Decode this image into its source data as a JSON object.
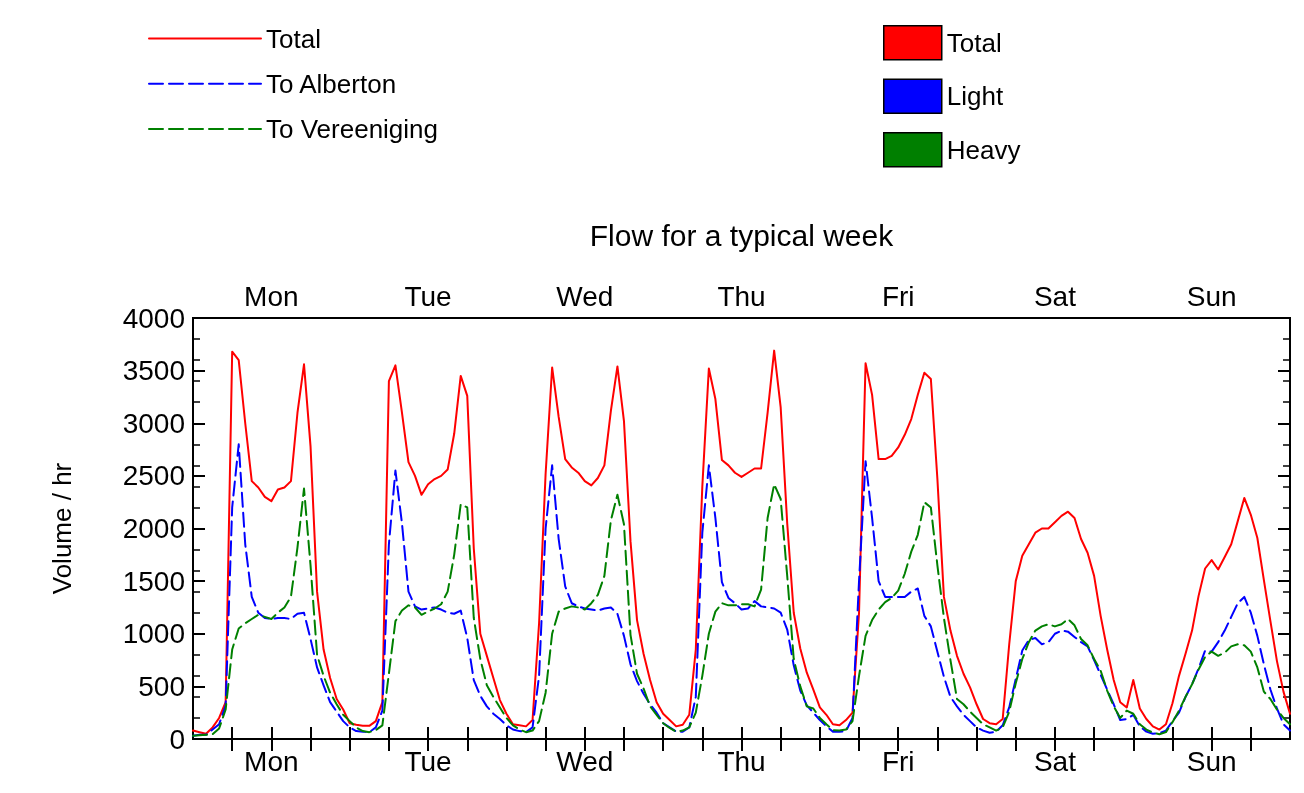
{
  "chart_data": {
    "type": "line",
    "title": "Flow for a typical week",
    "ylabel": "Volume / hr",
    "legend": "top left",
    "marker": "none",
    "grid": false,
    "categories": [
      null,
      null,
      null,
      null,
      null,
      null,
      null,
      null,
      null,
      null,
      null,
      null,
      "Mon",
      null,
      null,
      null,
      null,
      null,
      null,
      null,
      null,
      null,
      null,
      null,
      null,
      null,
      null,
      null,
      null,
      null,
      null,
      null,
      null,
      null,
      null,
      null,
      "Tue",
      null,
      null,
      null,
      null,
      null,
      null,
      null,
      null,
      null,
      null,
      null,
      null,
      null,
      null,
      null,
      null,
      null,
      null,
      null,
      null,
      null,
      null,
      null,
      "Wed",
      null,
      null,
      null,
      null,
      null,
      null,
      null,
      null,
      null,
      null,
      null,
      null,
      null,
      null,
      null,
      null,
      null,
      null,
      null,
      null,
      null,
      null,
      null,
      "Thu",
      null,
      null,
      null,
      null,
      null,
      null,
      null,
      null,
      null,
      null,
      null,
      null,
      null,
      null,
      null,
      null,
      null,
      null,
      null,
      null,
      null,
      null,
      null,
      "Fri",
      null,
      null,
      null,
      null,
      null,
      null,
      null,
      null,
      null,
      null,
      null,
      null,
      null,
      null,
      null,
      null,
      null,
      null,
      null,
      null,
      null,
      null,
      null,
      "Sat",
      null,
      null,
      null,
      null,
      null,
      null,
      null,
      null,
      null,
      null,
      null,
      null,
      null,
      null,
      null,
      null,
      null,
      null,
      null,
      null,
      null,
      null,
      null,
      "Sun",
      null,
      null,
      null,
      null,
      null,
      null,
      null,
      null,
      null,
      null,
      null,
      null
    ],
    "ylim": [
      0,
      4000
    ],
    "yticks": [
      0,
      500,
      1000,
      1500,
      2000,
      2500,
      3000,
      3500,
      4000
    ],
    "series": [
      {
        "name": "Total",
        "color": "#ff0000",
        "line_style": "solid",
        "values": [
          80,
          65,
          50,
          110,
          200,
          350,
          3680,
          3600,
          3000,
          2450,
          2390,
          2300,
          2260,
          2370,
          2390,
          2450,
          3100,
          3560,
          2780,
          1400,
          850,
          580,
          380,
          280,
          150,
          135,
          125,
          125,
          170,
          350,
          3400,
          3550,
          3100,
          2630,
          2500,
          2320,
          2420,
          2470,
          2500,
          2560,
          2900,
          3450,
          3260,
          1810,
          1000,
          790,
          580,
          370,
          240,
          140,
          130,
          120,
          180,
          1100,
          2520,
          3530,
          3060,
          2660,
          2580,
          2530,
          2450,
          2410,
          2480,
          2600,
          3120,
          3540,
          3020,
          1880,
          1130,
          810,
          560,
          350,
          240,
          180,
          120,
          135,
          230,
          850,
          2400,
          3520,
          3230,
          2650,
          2600,
          2530,
          2490,
          2530,
          2570,
          2570,
          3100,
          3690,
          3150,
          2050,
          1200,
          860,
          630,
          470,
          300,
          230,
          140,
          130,
          180,
          250,
          1200,
          3570,
          3270,
          2660,
          2660,
          2690,
          2770,
          2890,
          3040,
          3270,
          3480,
          3420,
          2470,
          1350,
          1030,
          790,
          620,
          490,
          330,
          190,
          150,
          140,
          190,
          900,
          1500,
          1740,
          1850,
          1960,
          2000,
          2000,
          2060,
          2120,
          2160,
          2100,
          1900,
          1770,
          1550,
          1170,
          850,
          560,
          350,
          300,
          560,
          290,
          190,
          120,
          90,
          140,
          340,
          600,
          810,
          1030,
          1360,
          1620,
          1700,
          1610,
          1730,
          1850,
          2070,
          2290,
          2130,
          1910,
          1510,
          1120,
          740,
          450,
          240
        ]
      },
      {
        "name": "To Alberton",
        "color": "#0000ff",
        "line_style": "dashed",
        "values": [
          30,
          40,
          40,
          90,
          140,
          320,
          2200,
          2800,
          1850,
          1350,
          1200,
          1150,
          1140,
          1150,
          1150,
          1140,
          1190,
          1200,
          950,
          680,
          510,
          350,
          260,
          170,
          110,
          75,
          70,
          65,
          110,
          270,
          1850,
          2550,
          2050,
          1400,
          1260,
          1230,
          1240,
          1250,
          1230,
          1200,
          1190,
          1220,
          960,
          560,
          410,
          310,
          240,
          190,
          130,
          90,
          75,
          65,
          110,
          600,
          2000,
          2600,
          1900,
          1450,
          1290,
          1260,
          1240,
          1230,
          1220,
          1240,
          1250,
          1190,
          980,
          710,
          550,
          430,
          330,
          250,
          150,
          110,
          70,
          70,
          110,
          400,
          1960,
          2600,
          2100,
          1490,
          1340,
          1290,
          1230,
          1240,
          1310,
          1260,
          1250,
          1240,
          1200,
          1040,
          700,
          460,
          320,
          250,
          180,
          120,
          70,
          70,
          75,
          200,
          1500,
          2640,
          2100,
          1500,
          1350,
          1350,
          1350,
          1350,
          1400,
          1430,
          1170,
          1070,
          830,
          590,
          400,
          310,
          230,
          170,
          110,
          80,
          60,
          70,
          130,
          300,
          570,
          840,
          940,
          960,
          900,
          920,
          1000,
          1030,
          1020,
          970,
          920,
          880,
          750,
          610,
          470,
          330,
          180,
          190,
          230,
          120,
          70,
          50,
          55,
          80,
          170,
          250,
          400,
          520,
          670,
          840,
          830,
          920,
          1030,
          1160,
          1290,
          1350,
          1200,
          980,
          710,
          470,
          290,
          140,
          80
        ]
      },
      {
        "name": "To Vereeniging",
        "color": "#008000",
        "line_style": "dashed",
        "values": [
          30,
          35,
          40,
          45,
          100,
          280,
          850,
          1050,
          1100,
          1140,
          1180,
          1160,
          1140,
          1200,
          1250,
          1350,
          1820,
          2380,
          1650,
          800,
          600,
          440,
          330,
          230,
          170,
          110,
          75,
          65,
          85,
          130,
          620,
          1120,
          1220,
          1270,
          1250,
          1180,
          1210,
          1240,
          1280,
          1400,
          1750,
          2230,
          2200,
          1150,
          760,
          510,
          400,
          300,
          200,
          130,
          90,
          65,
          80,
          170,
          440,
          1000,
          1210,
          1240,
          1260,
          1250,
          1230,
          1290,
          1370,
          1550,
          2080,
          2320,
          2040,
          990,
          620,
          480,
          310,
          230,
          150,
          105,
          70,
          80,
          110,
          250,
          600,
          1000,
          1210,
          1290,
          1270,
          1270,
          1280,
          1280,
          1260,
          1420,
          2100,
          2420,
          2280,
          1550,
          760,
          500,
          310,
          290,
          200,
          140,
          85,
          80,
          90,
          170,
          600,
          980,
          1130,
          1230,
          1300,
          1340,
          1410,
          1570,
          1780,
          1940,
          2250,
          2200,
          1650,
          1150,
          750,
          380,
          330,
          260,
          200,
          140,
          110,
          80,
          110,
          260,
          530,
          760,
          920,
          1030,
          1070,
          1090,
          1070,
          1090,
          1140,
          1080,
          950,
          890,
          760,
          650,
          460,
          310,
          200,
          270,
          240,
          140,
          90,
          60,
          45,
          65,
          160,
          270,
          400,
          520,
          660,
          780,
          830,
          790,
          820,
          880,
          900,
          890,
          830,
          680,
          450,
          380,
          280,
          200,
          140
        ]
      },
      {
        "name": "Total",
        "color": "#ff0000",
        "type": "bar",
        "values": [
          null,
          null,
          null,
          null,
          null,
          null,
          null,
          null,
          null,
          null,
          null,
          null,
          null,
          null,
          null,
          null,
          null,
          null,
          null,
          null,
          null,
          null,
          null,
          null,
          null,
          null,
          null,
          null,
          null,
          null,
          null,
          null,
          null,
          null,
          null,
          null,
          null,
          null,
          null,
          null,
          null,
          null,
          null,
          null,
          null,
          null,
          null,
          null,
          null,
          null,
          null,
          null,
          null,
          null,
          null,
          null,
          null,
          null,
          null,
          null,
          null,
          null,
          null,
          null,
          null,
          null,
          null,
          null,
          null,
          null,
          null,
          null,
          null,
          null,
          null,
          null,
          null,
          null,
          null,
          null,
          null,
          null,
          null,
          null,
          null,
          null,
          null,
          null,
          null,
          null,
          null,
          null,
          null,
          null,
          null,
          null,
          null,
          null,
          null,
          null,
          null,
          null,
          null,
          null,
          null,
          null,
          null,
          null,
          null,
          null,
          null,
          null,
          null,
          null,
          null,
          null,
          null,
          null,
          null,
          null,
          null,
          null,
          null,
          null,
          null,
          null,
          null,
          null,
          null,
          null,
          null,
          null,
          null,
          null,
          null,
          null,
          null,
          null,
          null,
          null,
          null,
          null,
          null,
          null,
          null,
          null,
          null,
          null,
          null,
          null,
          null,
          null,
          null,
          null,
          null,
          null,
          null,
          null,
          null,
          null,
          null,
          null,
          null,
          null,
          null,
          null,
          null,
          null,
          null
        ]
      },
      {
        "name": "Light",
        "color": "#0000ff",
        "type": "bar",
        "values": [
          null,
          null,
          null,
          null,
          null,
          null,
          null,
          null,
          null,
          null,
          null,
          null,
          null,
          null,
          null,
          null,
          null,
          null,
          null,
          null,
          null,
          null,
          null,
          null,
          null,
          null,
          null,
          null,
          null,
          null,
          null,
          null,
          null,
          null,
          null,
          null,
          null,
          null,
          null,
          null,
          null,
          null,
          null,
          null,
          null,
          null,
          null,
          null,
          null,
          null,
          null,
          null,
          null,
          null,
          null,
          null,
          null,
          null,
          null,
          null,
          null,
          null,
          null,
          null,
          null,
          null,
          null,
          null,
          null,
          null,
          null,
          null,
          null,
          null,
          null,
          null,
          null,
          null,
          null,
          null,
          null,
          null,
          null,
          null,
          null,
          null,
          null,
          null,
          null,
          null,
          null,
          null,
          null,
          null,
          null,
          null,
          null,
          null,
          null,
          null,
          null,
          null,
          null,
          null,
          null,
          null,
          null,
          null,
          null,
          null,
          null,
          null,
          null,
          null,
          null,
          null,
          null,
          null,
          null,
          null,
          null,
          null,
          null,
          null,
          null,
          null,
          null,
          null,
          null,
          null,
          null,
          null,
          null,
          null,
          null,
          null,
          null,
          null,
          null,
          null,
          null,
          null,
          null,
          null,
          null,
          null,
          null,
          null,
          null,
          null,
          null,
          null,
          null,
          null,
          null,
          null,
          null,
          null,
          null,
          null,
          null,
          null,
          null,
          null,
          null,
          null,
          null,
          null,
          null
        ]
      },
      {
        "name": "Heavy",
        "color": "#007f00",
        "type": "bar",
        "values": [
          null,
          null,
          null,
          null,
          null,
          null,
          null,
          null,
          null,
          null,
          null,
          null,
          null,
          null,
          null,
          null,
          null,
          null,
          null,
          null,
          null,
          null,
          null,
          null,
          null,
          null,
          null,
          null,
          null,
          null,
          null,
          null,
          null,
          null,
          null,
          null,
          null,
          null,
          null,
          null,
          null,
          null,
          null,
          null,
          null,
          null,
          null,
          null,
          null,
          null,
          null,
          null,
          null,
          null,
          null,
          null,
          null,
          null,
          null,
          null,
          null,
          null,
          null,
          null,
          null,
          null,
          null,
          null,
          null,
          null,
          null,
          null,
          null,
          null,
          null,
          null,
          null,
          null,
          null,
          null,
          null,
          null,
          null,
          null,
          null,
          null,
          null,
          null,
          null,
          null,
          null,
          null,
          null,
          null,
          null,
          null,
          null,
          null,
          null,
          null,
          null,
          null,
          null,
          null,
          null,
          null,
          null,
          null,
          null,
          null,
          null,
          null,
          null,
          null,
          null,
          null,
          null,
          null,
          null,
          null,
          null,
          null,
          null,
          null,
          null,
          null,
          null,
          null,
          null,
          null,
          null,
          null,
          null,
          null,
          null,
          null,
          null,
          null,
          null,
          null,
          null,
          null,
          null,
          null,
          null,
          null,
          null,
          null,
          null,
          null,
          null,
          null,
          null,
          null,
          null,
          null,
          null,
          null,
          null,
          null,
          null,
          null,
          null,
          null,
          null,
          null,
          null,
          null,
          null
        ]
      }
    ]
  }
}
